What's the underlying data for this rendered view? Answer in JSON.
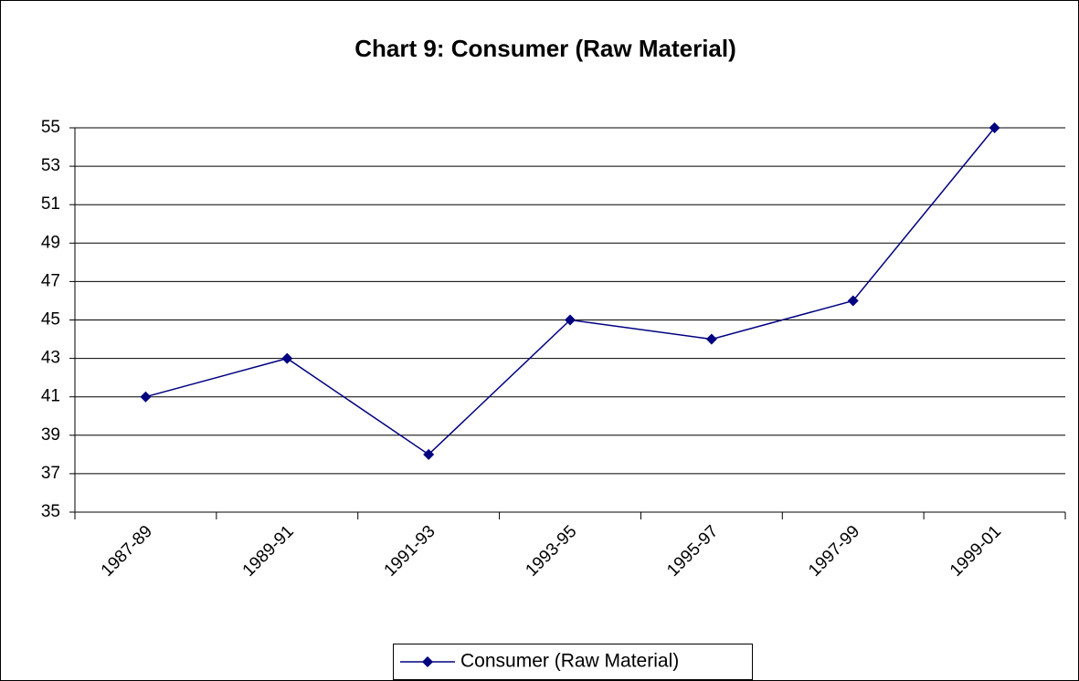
{
  "chart_data": {
    "type": "line",
    "title": "Chart 9: Consumer (Raw Material)",
    "categories": [
      "1987-89",
      "1989-91",
      "1991-93",
      "1993-95",
      "1995-97",
      "1997-99",
      "1999-01"
    ],
    "series": [
      {
        "name": "Consumer (Raw Material)",
        "color": "#000080",
        "values": [
          41,
          43,
          38,
          45,
          44,
          46,
          55
        ]
      }
    ],
    "ylim": [
      35,
      55
    ],
    "yticks": [
      35,
      37,
      39,
      41,
      43,
      45,
      47,
      49,
      51,
      53,
      55
    ],
    "grid": true,
    "legend": "bottom"
  }
}
